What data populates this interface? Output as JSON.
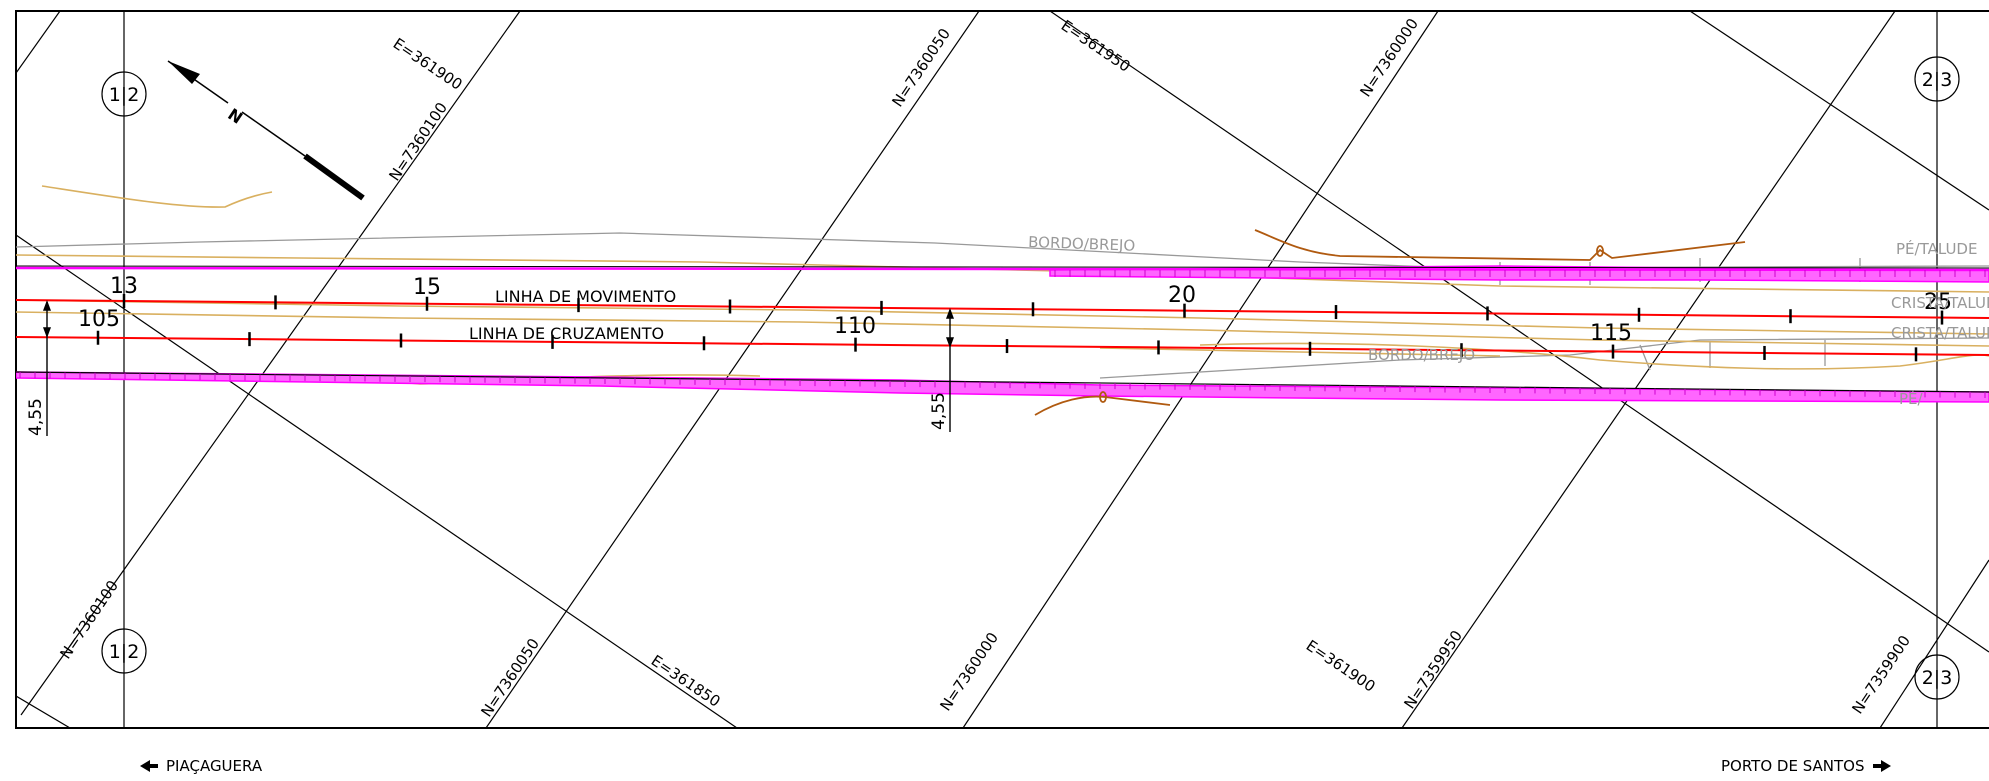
{
  "grid": {
    "e_labels": [
      "E=361900",
      "E=361950",
      "E=361850",
      "E=361900"
    ],
    "n_labels": [
      "N=7360100",
      "N=7360050",
      "N=7360000",
      "N=7360100",
      "N=7360050",
      "N=7360000",
      "N=7359950",
      "N=7359900"
    ]
  },
  "sheets": {
    "top_left": "1|2",
    "bottom_left": "1|2",
    "top_right": "2|3",
    "bottom_right": "2|3"
  },
  "north_symbol": "N",
  "lines": {
    "movement": "LINHA DE MOVIMENTO",
    "crossing": "LINHA DE CRUZAMENTO"
  },
  "stations_top": [
    "13",
    "15",
    "20",
    "25"
  ],
  "stations_bottom": [
    "105",
    "110",
    "115"
  ],
  "features": {
    "bordo_brejo": "BORDO/BREJO",
    "pe_talude": "PÉ/TALUDE",
    "crista_talude": "CRISTA/TALUDE",
    "pe_short": "PÉ/"
  },
  "dimensions": [
    "4,55",
    "4,55"
  ],
  "footer": {
    "left": "PIAÇAGUERA",
    "right": "PORTO DE SANTOS"
  },
  "colors": {
    "frame": "#000000",
    "track": "#ff0000",
    "bank": "#ff00ff",
    "contour": "#d9b060",
    "brown": "#b05a10",
    "feature_text": "#999999"
  }
}
